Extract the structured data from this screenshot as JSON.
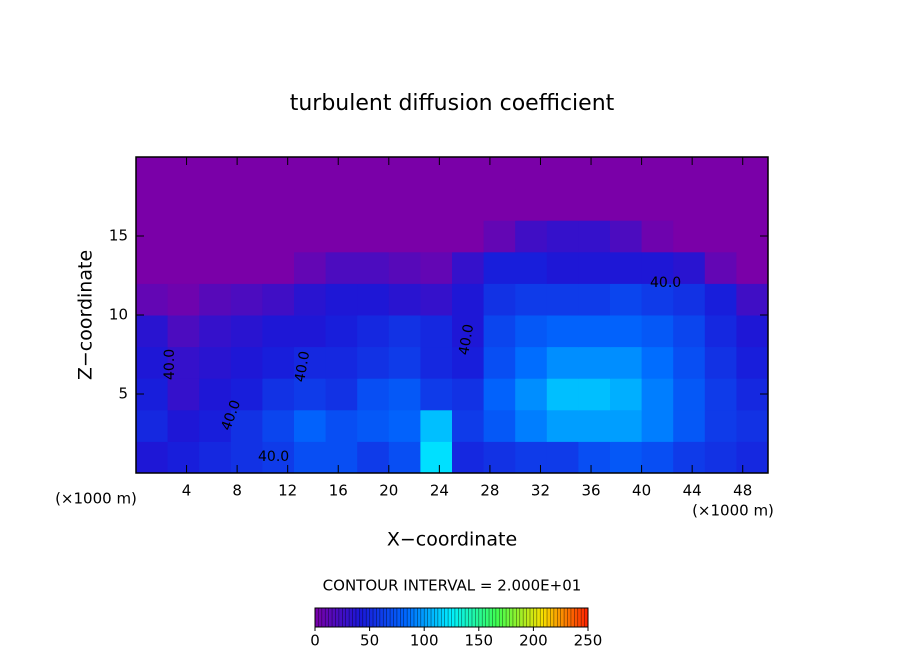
{
  "chart_data": {
    "type": "heatmap",
    "title": "turbulent diffusion coefficient",
    "x_label": "X−coordinate",
    "y_label": "Z−coordinate",
    "x_unit_left": "(×1000 m)",
    "x_unit_right": "(×1000 m)",
    "contour_interval": "CONTOUR INTERVAL = 2.000E+01",
    "contour_labels": [
      "40.0",
      "40.0",
      "40.0",
      "40.0",
      "40.0",
      "40.0"
    ],
    "xlim": [
      0,
      50
    ],
    "xticks": [
      4,
      8,
      12,
      16,
      20,
      24,
      28,
      32,
      36,
      40,
      44,
      48
    ],
    "ylim": [
      0,
      20
    ],
    "yticks": [
      5,
      10,
      15
    ],
    "x": [
      1.25,
      3.75,
      6.25,
      8.75,
      11.25,
      13.75,
      16.25,
      18.75,
      21.25,
      23.75,
      26.25,
      28.75,
      31.25,
      33.75,
      36.25,
      38.75,
      41.25,
      43.75,
      46.25,
      48.75
    ],
    "z": [
      1,
      3,
      5,
      7,
      9,
      11,
      13,
      15,
      17,
      19
    ],
    "values": [
      [
        40,
        45,
        50,
        55,
        60,
        70,
        70,
        60,
        70,
        120,
        50,
        55,
        60,
        60,
        70,
        75,
        70,
        60,
        55,
        50
      ],
      [
        50,
        40,
        45,
        55,
        65,
        80,
        70,
        75,
        80,
        110,
        60,
        75,
        90,
        100,
        100,
        100,
        90,
        75,
        60,
        55
      ],
      [
        45,
        30,
        40,
        45,
        55,
        60,
        55,
        70,
        75,
        60,
        55,
        80,
        95,
        110,
        110,
        105,
        90,
        75,
        60,
        50
      ],
      [
        40,
        30,
        35,
        40,
        45,
        50,
        50,
        55,
        60,
        50,
        45,
        70,
        85,
        95,
        95,
        95,
        85,
        70,
        55,
        45
      ],
      [
        35,
        20,
        30,
        35,
        40,
        40,
        45,
        50,
        55,
        50,
        40,
        65,
        75,
        80,
        80,
        80,
        75,
        65,
        50,
        40
      ],
      [
        10,
        5,
        15,
        20,
        25,
        35,
        40,
        40,
        35,
        30,
        40,
        55,
        60,
        60,
        60,
        65,
        60,
        55,
        45,
        25
      ],
      [
        0,
        0,
        0,
        0,
        0,
        10,
        20,
        20,
        15,
        10,
        30,
        45,
        45,
        40,
        40,
        40,
        40,
        35,
        10,
        0
      ],
      [
        0,
        0,
        0,
        0,
        0,
        0,
        0,
        0,
        0,
        0,
        0,
        10,
        25,
        30,
        30,
        20,
        5,
        0,
        0,
        0
      ],
      [
        0,
        0,
        0,
        0,
        0,
        0,
        0,
        0,
        0,
        0,
        0,
        0,
        0,
        0,
        0,
        0,
        0,
        0,
        0,
        0
      ],
      [
        0,
        0,
        0,
        0,
        0,
        0,
        0,
        0,
        0,
        0,
        0,
        0,
        0,
        0,
        0,
        0,
        0,
        0,
        0,
        0
      ]
    ],
    "colorbar_lim": [
      0,
      250
    ],
    "colorbar_ticks": [
      0,
      50,
      100,
      150,
      200,
      250
    ],
    "colormap": [
      "#7a00a8",
      "#1a18d8",
      "#0068ff",
      "#00f0ff",
      "#40ff50",
      "#f8e000",
      "#ff2000"
    ]
  }
}
